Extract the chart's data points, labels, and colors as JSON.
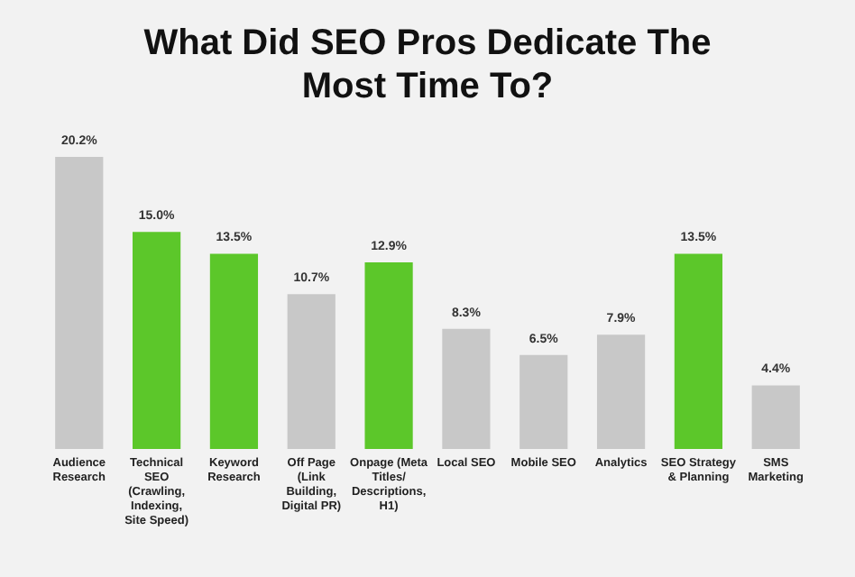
{
  "chart_data": {
    "type": "bar",
    "title": "What Did SEO Pros Dedicate The Most Time To?",
    "categories": [
      "Audience Research",
      "Technical SEO (Crawling, Indexing, Site Speed)",
      "Keyword Research",
      "Off Page (Link Building, Digital PR)",
      "Onpage (Meta Titles/ Descriptions, H1)",
      "Local SEO",
      "Mobile SEO",
      "Analytics",
      "SEO Strategy & Planning",
      "SMS Marketing"
    ],
    "values": [
      20.2,
      15.0,
      13.5,
      10.7,
      12.9,
      8.3,
      6.5,
      7.9,
      13.5,
      4.4
    ],
    "value_labels": [
      "20.2%",
      "15.0%",
      "13.5%",
      "10.7%",
      "12.9%",
      "8.3%",
      "6.5%",
      "7.9%",
      "13.5%",
      "4.4%"
    ],
    "colors": [
      "#c8c8c8",
      "#5cc72a",
      "#5cc72a",
      "#c8c8c8",
      "#5cc72a",
      "#c8c8c8",
      "#c8c8c8",
      "#c8c8c8",
      "#5cc72a",
      "#c8c8c8"
    ],
    "relative": false
  }
}
